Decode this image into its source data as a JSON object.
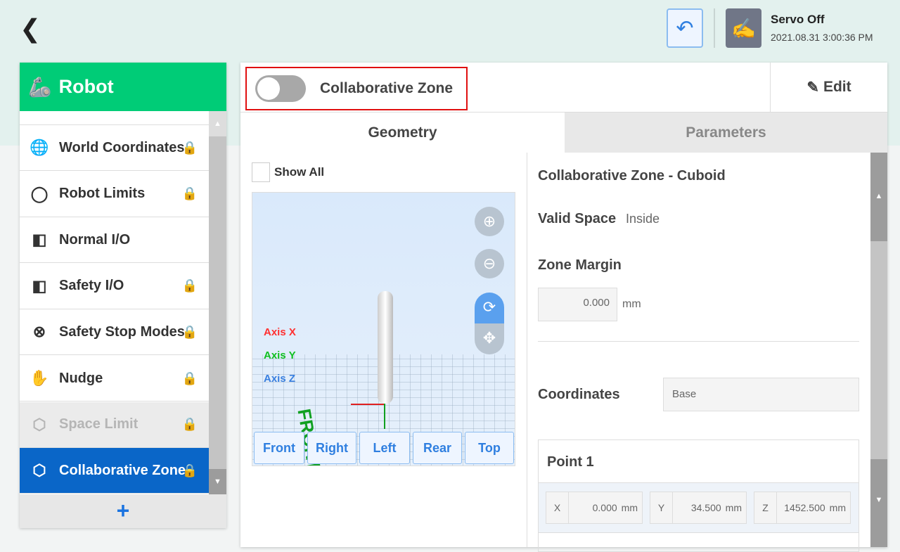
{
  "header": {
    "back_icon": "chevron-left-icon",
    "servo_status": "Servo Off",
    "datetime": "2021.08.31 3:00:36 PM"
  },
  "sidebar": {
    "title": "Robot",
    "items": [
      {
        "label": "World Coordinates",
        "icon": "globe-icon",
        "locked": true
      },
      {
        "label": "Robot Limits",
        "icon": "limit-icon",
        "locked": true
      },
      {
        "label": "Normal I/O",
        "icon": "io-icon",
        "locked": false
      },
      {
        "label": "Safety I/O",
        "icon": "io-icon",
        "locked": true
      },
      {
        "label": "Safety Stop Modes",
        "icon": "stop-icon",
        "locked": true
      },
      {
        "label": "Nudge",
        "icon": "hand-icon",
        "locked": true
      },
      {
        "label": "Space Limit",
        "icon": "cube-icon",
        "locked": true,
        "disabled": true
      },
      {
        "label": "Collaborative Zone",
        "icon": "cube-icon",
        "locked": true,
        "selected": true
      }
    ],
    "add_label": "+"
  },
  "panel": {
    "toggle_label": "Collaborative Zone",
    "toggle_on": false,
    "edit_label": "Edit",
    "tabs": [
      {
        "label": "Geometry",
        "active": true
      },
      {
        "label": "Parameters",
        "active": false
      }
    ],
    "show_all": "Show All",
    "view": {
      "axes": [
        {
          "label": "Axis X",
          "color": "#ff3030"
        },
        {
          "label": "Axis Y",
          "color": "#10c020"
        },
        {
          "label": "Axis Z",
          "color": "#3a80e0"
        }
      ],
      "front_text": "FRONT",
      "buttons": [
        "Front",
        "Right",
        "Left",
        "Rear",
        "Top"
      ]
    },
    "zone_title": "Collaborative Zone - Cuboid",
    "valid_space_label": "Valid Space",
    "valid_space": "Inside",
    "zone_margin_label": "Zone Margin",
    "zone_margin": "0.000",
    "zone_margin_unit": "mm",
    "coordinates_label": "Coordinates",
    "coordinates": "Base",
    "point1": {
      "label": "Point 1",
      "x": "0.000",
      "y": "34.500",
      "z": "1452.500",
      "unit": "mm",
      "kx": "X",
      "ky": "Y",
      "kz": "Z"
    }
  }
}
